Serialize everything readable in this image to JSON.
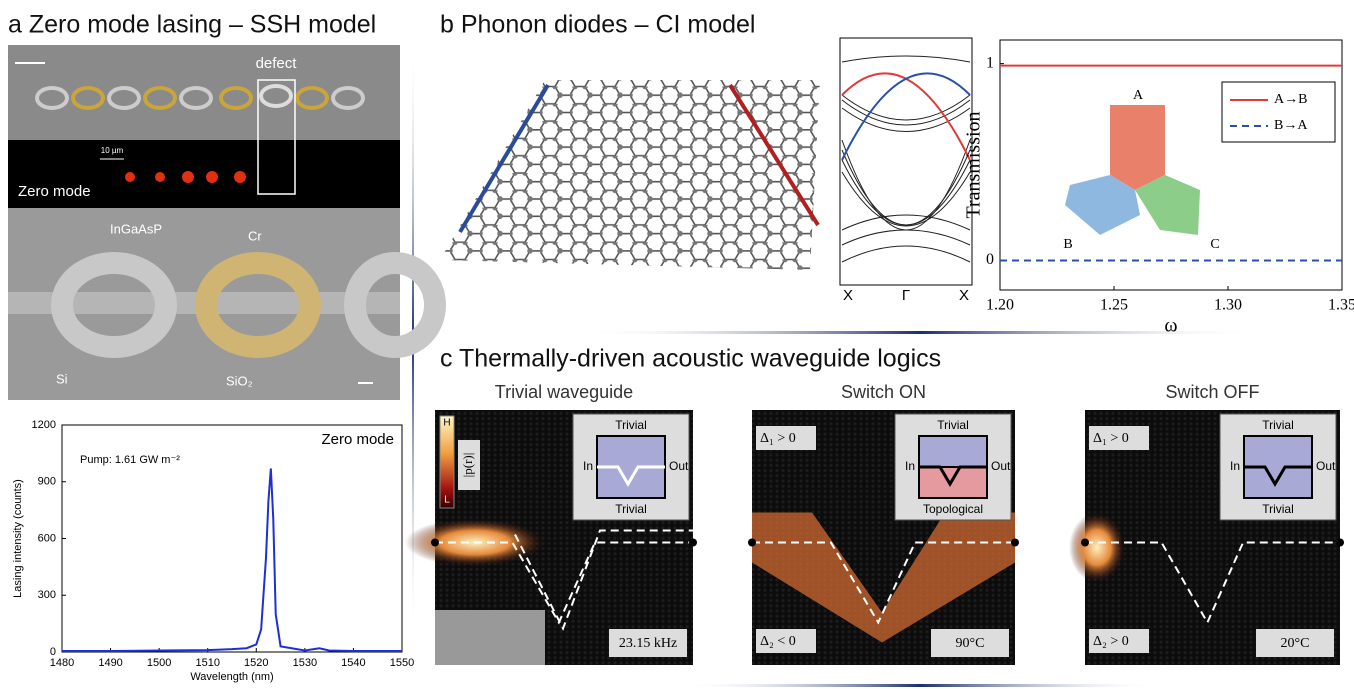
{
  "panels": {
    "a": {
      "title": "a Zero mode lasing – SSH model",
      "defect_label": "defect",
      "scale_label": "10 µm",
      "mode_label": "Zero mode",
      "material_labels": [
        "InGaAsP",
        "Cr",
        "Si",
        "SiO₂"
      ]
    },
    "b": {
      "title": "b Phonon diodes – CI model",
      "band_labels": [
        "X",
        "Γ",
        "X"
      ]
    },
    "c": {
      "title": "c Thermally-driven acoustic waveguide logics",
      "colorbar": {
        "top": "H",
        "bottom": "L",
        "quantity": "|p(r)|"
      },
      "subpanels": [
        {
          "title": "Trivial waveguide",
          "inset_top": "Trivial",
          "inset_bottom": "Trivial",
          "inset_in": "In",
          "inset_out": "Out",
          "corner_label": "23.15 kHz"
        },
        {
          "title": "Switch ON",
          "inset_top": "Trivial",
          "inset_bottom": "Topological",
          "inset_in": "In",
          "inset_out": "Out",
          "corner_label": "90°C",
          "delta_top": "Δ₁ > 0",
          "delta_bottom": "Δ₂ < 0"
        },
        {
          "title": "Switch OFF",
          "inset_top": "Trivial",
          "inset_bottom": "Trivial",
          "inset_in": "In",
          "inset_out": "Out",
          "corner_label": "20°C",
          "delta_top": "Δ₁ > 0",
          "delta_bottom": "Δ₂ > 0"
        }
      ]
    }
  },
  "chart_data": [
    {
      "type": "line",
      "xlabel": "Wavelength (nm)",
      "ylabel": "Lasing intensity (counts)",
      "annotations": [
        "Pump: 1.61 GW m⁻²",
        "Zero mode"
      ],
      "color": "#1f2fd6",
      "x": [
        1480,
        1490,
        1500,
        1510,
        1515,
        1518,
        1520,
        1521,
        1522,
        1522.5,
        1523,
        1523.5,
        1524,
        1525,
        1530,
        1533,
        1535,
        1540,
        1550
      ],
      "values": [
        5,
        5,
        8,
        10,
        15,
        20,
        40,
        120,
        500,
        800,
        970,
        700,
        200,
        30,
        8,
        20,
        8,
        5,
        5
      ],
      "xlim": [
        1480,
        1550
      ],
      "ylim": [
        0,
        1200
      ],
      "xticks": [
        1480,
        1490,
        1500,
        1510,
        1520,
        1530,
        1540,
        1550
      ],
      "yticks": [
        0,
        300,
        600,
        900,
        1200
      ]
    },
    {
      "type": "line",
      "xlabel": "ω",
      "ylabel": "Transmission",
      "annotations": [
        "A",
        "B",
        "C"
      ],
      "legend": "upper right",
      "x": [
        1.2,
        1.35
      ],
      "series": [
        {
          "name": "A→B",
          "color": "#e03a3a",
          "line_style": "solid",
          "values": [
            0.99,
            0.99
          ]
        },
        {
          "name": "B→A",
          "color": "#2b4fa8",
          "line_style": "dashed",
          "values": [
            0,
            0
          ]
        }
      ],
      "xlim": [
        1.2,
        1.35
      ],
      "ylim": [
        -0.15,
        1.12
      ],
      "xticks": [
        {
          "value": 1.2,
          "label": "1.20"
        },
        {
          "value": 1.25,
          "label": "1.25"
        },
        {
          "value": 1.3,
          "label": "1.30"
        },
        {
          "value": 1.35,
          "label": "1.35"
        }
      ],
      "yticks": [
        0,
        1
      ]
    }
  ]
}
